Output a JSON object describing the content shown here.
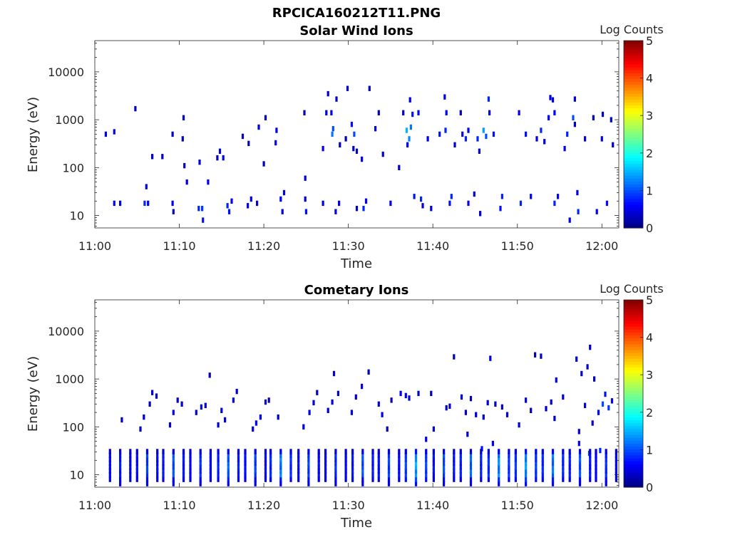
{
  "figure": {
    "title": "RPCICA160212T11.PNG"
  },
  "colors": {
    "axis": "#262626",
    "background": "#ffffff"
  },
  "chart_data": [
    {
      "type": "heatmap",
      "title": "Solar Wind Ions",
      "xlabel": "Time",
      "ylabel": "Energy (eV)",
      "x_ticks": [
        "11:00",
        "11:10",
        "11:20",
        "11:30",
        "11:40",
        "11:50",
        "12:00"
      ],
      "x_tick_minutes": [
        0,
        10,
        20,
        30,
        40,
        50,
        60
      ],
      "xlim_minutes": [
        0,
        62
      ],
      "yscale": "log",
      "ylim": [
        5.5,
        45000
      ],
      "y_ticks": [
        "10",
        "100",
        "1000",
        "10000"
      ],
      "y_tick_values": [
        10,
        100,
        1000,
        10000
      ],
      "colorbar": {
        "label": "Log Counts",
        "range": [
          0,
          5
        ],
        "ticks": [
          "0",
          "1",
          "2",
          "3",
          "4",
          "5"
        ],
        "colormap": "jet"
      },
      "cells": [
        [
          1.3,
          500,
          0.6
        ],
        [
          2.3,
          560,
          0.5
        ],
        [
          2.3,
          18,
          0.6
        ],
        [
          3.0,
          18,
          0.5
        ],
        [
          4.8,
          1700,
          0.3
        ],
        [
          5.9,
          18,
          0.8
        ],
        [
          6.3,
          18,
          0.5
        ],
        [
          6.1,
          40,
          0.4
        ],
        [
          6.8,
          170,
          0.4
        ],
        [
          8.0,
          170,
          0.3
        ],
        [
          9.2,
          500,
          0.3
        ],
        [
          9.2,
          18,
          0.5
        ],
        [
          9.3,
          12,
          0.3
        ],
        [
          10.4,
          400,
          0.3
        ],
        [
          10.5,
          1100,
          0.3
        ],
        [
          10.6,
          110,
          0.3
        ],
        [
          10.9,
          50,
          0.5
        ],
        [
          12.4,
          130,
          0.4
        ],
        [
          12.3,
          14,
          0.8
        ],
        [
          12.7,
          14,
          0.9
        ],
        [
          12.8,
          8,
          0.7
        ],
        [
          13.4,
          50,
          0.5
        ],
        [
          14.5,
          160,
          0.3
        ],
        [
          14.8,
          220,
          0.5
        ],
        [
          15.2,
          160,
          0.6
        ],
        [
          15.7,
          16,
          0.8
        ],
        [
          15.9,
          12,
          0.7
        ],
        [
          16.2,
          20,
          0.6
        ],
        [
          17.5,
          450,
          0.3
        ],
        [
          18.2,
          320,
          0.3
        ],
        [
          18.1,
          16,
          0.5
        ],
        [
          18.5,
          22,
          0.5
        ],
        [
          19.4,
          700,
          0.5
        ],
        [
          19.2,
          18,
          0.4
        ],
        [
          20.0,
          120,
          0.3
        ],
        [
          20.2,
          1100,
          0.3
        ],
        [
          21.4,
          330,
          0.6
        ],
        [
          21.5,
          600,
          0.5
        ],
        [
          22.0,
          22,
          0.6
        ],
        [
          22.2,
          12,
          0.5
        ],
        [
          22.4,
          30,
          0.5
        ],
        [
          24.8,
          1400,
          0.3
        ],
        [
          24.9,
          60,
          0.4
        ],
        [
          24.9,
          22,
          0.4
        ],
        [
          25.0,
          12,
          0.7
        ],
        [
          27.0,
          250,
          0.6
        ],
        [
          27.0,
          18,
          0.5
        ],
        [
          27.4,
          1400,
          0.4
        ],
        [
          28.0,
          1400,
          0.6
        ],
        [
          28.1,
          500,
          1.2
        ],
        [
          28.2,
          650,
          1.0
        ],
        [
          28.6,
          2700,
          0.3
        ],
        [
          28.5,
          12,
          0.5
        ],
        [
          28.9,
          18,
          0.5
        ],
        [
          29.0,
          300,
          0.3
        ],
        [
          29.9,
          4500,
          0.3
        ],
        [
          29.7,
          400,
          0.3
        ],
        [
          30.4,
          800,
          0.7
        ],
        [
          30.7,
          500,
          1.0
        ],
        [
          30.6,
          250,
          0.4
        ],
        [
          31.0,
          220,
          0.4
        ],
        [
          31.6,
          150,
          0.5
        ],
        [
          31.8,
          14,
          0.8
        ],
        [
          32.1,
          20,
          0.6
        ],
        [
          32.5,
          4500,
          0.3
        ],
        [
          33.2,
          650,
          0.6
        ],
        [
          33.6,
          1400,
          0.3
        ],
        [
          34.1,
          190,
          0.4
        ],
        [
          35.0,
          18,
          0.5
        ],
        [
          36.0,
          100,
          0.3
        ],
        [
          36.5,
          1400,
          0.3
        ],
        [
          36.9,
          600,
          1.5
        ],
        [
          37.2,
          400,
          1.3
        ],
        [
          37.4,
          700,
          1.2
        ],
        [
          37.6,
          1300,
          0.7
        ],
        [
          37.0,
          300,
          0.6
        ],
        [
          37.3,
          2600,
          0.5
        ],
        [
          37.8,
          25,
          0.7
        ],
        [
          38.3,
          1400,
          0.6
        ],
        [
          38.6,
          22,
          0.8
        ],
        [
          38.8,
          16,
          0.5
        ],
        [
          39.4,
          400,
          0.5
        ],
        [
          39.8,
          14,
          0.5
        ],
        [
          40.8,
          500,
          0.7
        ],
        [
          41.5,
          600,
          0.8
        ],
        [
          41.4,
          3000,
          0.4
        ],
        [
          41.6,
          1400,
          0.6
        ],
        [
          42.0,
          18,
          0.7
        ],
        [
          42.2,
          25,
          0.8
        ],
        [
          42.6,
          300,
          0.4
        ],
        [
          43.3,
          1400,
          0.3
        ],
        [
          43.5,
          500,
          0.6
        ],
        [
          43.9,
          400,
          0.8
        ],
        [
          44.2,
          600,
          0.6
        ],
        [
          44.2,
          18,
          0.6
        ],
        [
          44.9,
          28,
          0.4
        ],
        [
          45.3,
          400,
          0.8
        ],
        [
          45.5,
          220,
          0.4
        ],
        [
          46.0,
          600,
          1.4
        ],
        [
          46.3,
          450,
          1.0
        ],
        [
          46.6,
          2700,
          0.8
        ],
        [
          46.7,
          1400,
          0.5
        ],
        [
          47.2,
          500,
          0.7
        ],
        [
          48.0,
          14,
          0.7
        ],
        [
          48.2,
          25,
          0.8
        ],
        [
          50.2,
          1400,
          0.5
        ],
        [
          50.4,
          18,
          0.8
        ],
        [
          51.0,
          500,
          0.7
        ],
        [
          51.6,
          25,
          0.6
        ],
        [
          52.3,
          400,
          0.5
        ],
        [
          52.8,
          600,
          0.8
        ],
        [
          53.2,
          350,
          0.4
        ],
        [
          53.7,
          1100,
          0.6
        ],
        [
          53.9,
          2900,
          0.5
        ],
        [
          54.2,
          2600,
          0.5
        ],
        [
          54.4,
          1400,
          0.6
        ],
        [
          54.4,
          18,
          0.8
        ],
        [
          54.8,
          25,
          0.6
        ],
        [
          55.6,
          250,
          0.5
        ],
        [
          55.9,
          500,
          0.8
        ],
        [
          56.6,
          1100,
          1.0
        ],
        [
          56.8,
          2700,
          0.5
        ],
        [
          56.8,
          800,
          0.4
        ],
        [
          57.1,
          30,
          0.5
        ],
        [
          57.2,
          12,
          0.8
        ],
        [
          58.0,
          400,
          0.5
        ],
        [
          59.0,
          1100,
          0.3
        ],
        [
          59.4,
          12,
          0.6
        ],
        [
          60.1,
          1300,
          0.3
        ],
        [
          60.0,
          400,
          0.6
        ],
        [
          60.6,
          18,
          0.7
        ],
        [
          61.1,
          1000,
          0.4
        ],
        [
          61.3,
          300,
          0.3
        ],
        [
          56.2,
          8,
          0.6
        ],
        [
          45.6,
          11,
          0.4
        ],
        [
          27.6,
          3500,
          0.3
        ],
        [
          31.0,
          14,
          0.4
        ]
      ]
    },
    {
      "type": "heatmap",
      "title": "Cometary Ions",
      "xlabel": "Time",
      "ylabel": "Energy (eV)",
      "x_ticks": [
        "11:00",
        "11:10",
        "11:20",
        "11:30",
        "11:40",
        "11:50",
        "12:00"
      ],
      "x_tick_minutes": [
        0,
        10,
        20,
        30,
        40,
        50,
        60
      ],
      "xlim_minutes": [
        0,
        62
      ],
      "yscale": "log",
      "ylim": [
        5.5,
        45000
      ],
      "y_ticks": [
        "10",
        "100",
        "1000",
        "10000"
      ],
      "y_tick_values": [
        10,
        100,
        1000,
        10000
      ],
      "colorbar": {
        "label": "Log Counts",
        "range": [
          0,
          5
        ],
        "ticks": [
          "0",
          "1",
          "2",
          "3",
          "4",
          "5"
        ],
        "colormap": "jet"
      },
      "pulse_minutes": [
        3.0,
        6.2,
        9.3,
        12.5,
        15.8,
        19.0,
        22.0,
        25.3,
        28.5,
        31.7,
        34.8,
        38.0,
        41.3,
        44.5,
        47.8,
        51.0,
        54.2,
        57.4,
        60.5
      ],
      "pulse_peak_log_counts": [
        0.8,
        1.0,
        1.1,
        0.9,
        1.2,
        1.0,
        1.3,
        1.0,
        0.9,
        1.1,
        1.0,
        1.6,
        1.1,
        1.2,
        1.4,
        1.5,
        1.3,
        1.1,
        0.9
      ],
      "cells": [
        [
          3.2,
          140,
          0.4
        ],
        [
          5.4,
          90,
          0.4
        ],
        [
          5.8,
          160,
          0.4
        ],
        [
          6.5,
          300,
          0.3
        ],
        [
          6.8,
          520,
          0.4
        ],
        [
          7.3,
          440,
          0.3
        ],
        [
          8.9,
          110,
          0.4
        ],
        [
          9.3,
          200,
          0.5
        ],
        [
          9.8,
          360,
          0.4
        ],
        [
          10.3,
          300,
          0.4
        ],
        [
          12.0,
          200,
          0.4
        ],
        [
          12.6,
          260,
          0.5
        ],
        [
          13.1,
          280,
          0.4
        ],
        [
          13.6,
          1200,
          0.3
        ],
        [
          14.6,
          110,
          0.4
        ],
        [
          15.0,
          220,
          0.5
        ],
        [
          15.4,
          140,
          0.4
        ],
        [
          16.4,
          360,
          0.4
        ],
        [
          16.8,
          550,
          0.4
        ],
        [
          18.7,
          90,
          0.5
        ],
        [
          19.1,
          120,
          0.6
        ],
        [
          19.6,
          160,
          0.5
        ],
        [
          20.2,
          330,
          0.4
        ],
        [
          20.6,
          360,
          0.3
        ],
        [
          21.7,
          160,
          0.3
        ],
        [
          24.7,
          100,
          0.5
        ],
        [
          25.4,
          200,
          0.5
        ],
        [
          25.9,
          320,
          0.4
        ],
        [
          26.3,
          520,
          0.4
        ],
        [
          27.6,
          220,
          0.4
        ],
        [
          28.1,
          330,
          0.4
        ],
        [
          28.3,
          1300,
          0.4
        ],
        [
          28.8,
          500,
          0.3
        ],
        [
          30.4,
          200,
          0.5
        ],
        [
          30.9,
          420,
          0.4
        ],
        [
          31.6,
          700,
          0.4
        ],
        [
          32.4,
          1400,
          0.3
        ],
        [
          33.6,
          300,
          0.4
        ],
        [
          34.0,
          180,
          0.5
        ],
        [
          34.6,
          90,
          0.3
        ],
        [
          35.1,
          360,
          0.3
        ],
        [
          36.2,
          500,
          0.5
        ],
        [
          36.8,
          450,
          0.6
        ],
        [
          37.2,
          400,
          0.4
        ],
        [
          38.3,
          500,
          0.4
        ],
        [
          39.8,
          500,
          0.3
        ],
        [
          40.1,
          90,
          0.4
        ],
        [
          41.6,
          250,
          0.3
        ],
        [
          42.0,
          270,
          0.4
        ],
        [
          42.5,
          2900,
          0.3
        ],
        [
          43.4,
          420,
          0.4
        ],
        [
          43.9,
          200,
          0.3
        ],
        [
          44.5,
          390,
          0.3
        ],
        [
          45.1,
          180,
          0.4
        ],
        [
          46.0,
          160,
          0.4
        ],
        [
          46.5,
          320,
          0.4
        ],
        [
          46.8,
          2700,
          0.4
        ],
        [
          47.4,
          300,
          0.3
        ],
        [
          48.2,
          260,
          0.3
        ],
        [
          48.8,
          180,
          0.3
        ],
        [
          50.2,
          110,
          0.4
        ],
        [
          51.0,
          360,
          0.4
        ],
        [
          51.6,
          220,
          0.3
        ],
        [
          52.1,
          3200,
          0.3
        ],
        [
          52.8,
          3000,
          0.4
        ],
        [
          53.4,
          240,
          0.4
        ],
        [
          54.0,
          330,
          0.4
        ],
        [
          54.4,
          150,
          0.3
        ],
        [
          54.6,
          950,
          0.5
        ],
        [
          55.4,
          420,
          0.4
        ],
        [
          57.0,
          2600,
          0.3
        ],
        [
          57.3,
          80,
          0.4
        ],
        [
          57.6,
          1300,
          0.4
        ],
        [
          58.0,
          280,
          0.5
        ],
        [
          58.3,
          1800,
          0.4
        ],
        [
          58.6,
          4600,
          0.3
        ],
        [
          59.1,
          1000,
          0.3
        ],
        [
          59.6,
          200,
          0.6
        ],
        [
          60.1,
          300,
          1.0
        ],
        [
          60.4,
          480,
          0.7
        ],
        [
          60.8,
          250,
          0.9
        ],
        [
          61.2,
          350,
          0.6
        ],
        [
          58.9,
          120,
          0.4
        ],
        [
          57.3,
          45,
          0.6
        ],
        [
          58.5,
          28,
          0.9
        ],
        [
          59.8,
          32,
          0.8
        ],
        [
          47.1,
          45,
          0.6
        ],
        [
          45.8,
          35,
          0.7
        ],
        [
          44.1,
          70,
          0.4
        ],
        [
          39.2,
          55,
          0.5
        ]
      ]
    }
  ]
}
